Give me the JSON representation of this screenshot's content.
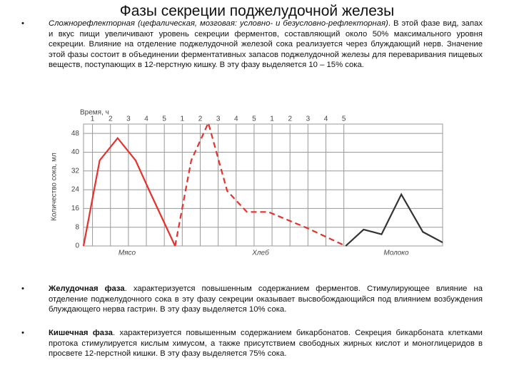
{
  "title": "Фазы секреции поджелудочной железы",
  "bullets": [
    {
      "lead": "Сложнорефлекторная (цефалическая, мозговая: условно- и безусловно-рефлекторная)",
      "text": ". В этой фазе вид, запах и вкус пищи увеличивают уровень секреции ферментов, составляющий около 50% максимального уровня секреции. Влияние на отделение поджелудочной железой сока реализуется через блуждающий нерв. Значение этой фазы состоит в объединении ферментативных запасов поджелудочной железы для переваривания пищевых веществ, поступающих в 12-перстную кишку. В эту фазу выделяется 10 – 15% сока."
    },
    {
      "lead": "Желудочная фаза",
      "text": ". характеризуется повышенным содержанием ферментов. Стимулирующее влияние на отделение поджелудочного сока в эту фазу секреции оказывает высвобождающийся под влиянием возбуждения блуждающего нерва гастрин. В эту фазу выделяется 10% сока."
    },
    {
      "lead": "Кишечная фаза",
      "text": ". характеризуется повышенным содержанием бикарбонатов. Секреция бикарбоната клетками протока стимулируется кислым химусом, а также присутствием свободных жирных кислот и моноглицеридов в просвете 12-перстной кишки. В эту фазу выделяется 75% сока."
    }
  ],
  "chart_data": {
    "type": "line",
    "x_label": "Время, ч",
    "y_label": "Количество сока, мл",
    "group_labels": [
      "Мясо",
      "Хлеб",
      "Молоко"
    ],
    "xlim": [
      0,
      20
    ],
    "ylim": [
      0,
      52
    ],
    "xticks": [
      {
        "value": 0.5,
        "label": "1"
      },
      {
        "value": 1.5,
        "label": "2"
      },
      {
        "value": 2.5,
        "label": "3"
      },
      {
        "value": 3.5,
        "label": "4"
      },
      {
        "value": 4.5,
        "label": "5"
      },
      {
        "value": 5.5,
        "label": "1"
      },
      {
        "value": 6.5,
        "label": "2"
      },
      {
        "value": 7.5,
        "label": "3"
      },
      {
        "value": 8.5,
        "label": "4"
      },
      {
        "value": 9.5,
        "label": "5"
      },
      {
        "value": 10.5,
        "label": "1"
      },
      {
        "value": 11.5,
        "label": "2"
      },
      {
        "value": 12.5,
        "label": "3"
      },
      {
        "value": 13.5,
        "label": "4"
      },
      {
        "value": 14.5,
        "label": "5"
      }
    ],
    "yticks": [
      0,
      8,
      16,
      24,
      32,
      40,
      48
    ],
    "grid": true,
    "series": [
      {
        "name": "Мясо",
        "color": "#e8302c",
        "dash": false,
        "x": [
          0,
          0.9,
          1.9,
          2.9,
          3.7,
          5.1
        ],
        "values": [
          0,
          36.5,
          46,
          36.5,
          23,
          0
        ]
      },
      {
        "name": "Хлеб",
        "color": "#e8302c",
        "dash": true,
        "x": [
          5.1,
          6,
          6.95,
          8,
          9.1,
          10.3,
          12.5,
          14.6
        ],
        "values": [
          0,
          36.5,
          52.5,
          23.5,
          14.5,
          14.5,
          7.5,
          0
        ]
      },
      {
        "name": "Молоко",
        "color": "#333333",
        "dash": false,
        "x": [
          14.6,
          15.6,
          16.6,
          17.7,
          18.9,
          20
        ],
        "values": [
          0,
          7,
          5,
          22,
          6,
          1.5
        ]
      }
    ]
  }
}
